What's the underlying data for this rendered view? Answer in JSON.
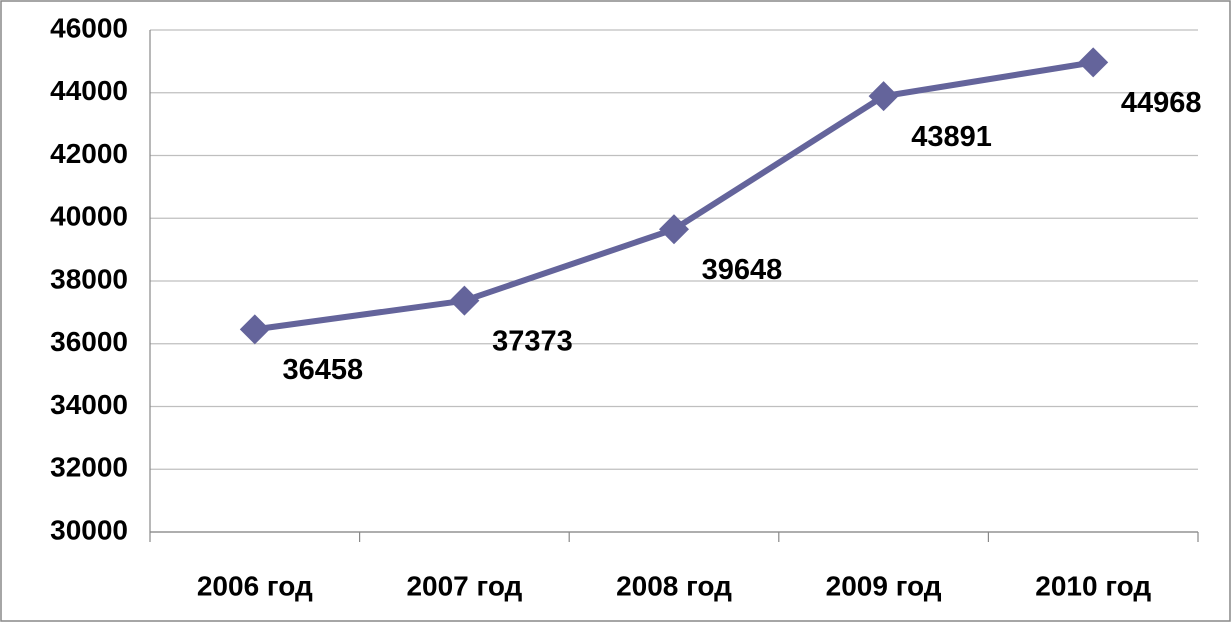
{
  "chart_data": {
    "type": "line",
    "categories": [
      "2006 год",
      "2007 год",
      "2008 год",
      "2009 год",
      "2010 год"
    ],
    "series": [
      {
        "color": "#64649b",
        "values": [
          36458,
          37373,
          39648,
          43891,
          44968
        ]
      }
    ],
    "ylim": [
      30000,
      46000
    ],
    "yticks": [
      30000,
      32000,
      34000,
      36000,
      38000,
      40000,
      42000,
      44000,
      46000
    ],
    "grid": true
  }
}
